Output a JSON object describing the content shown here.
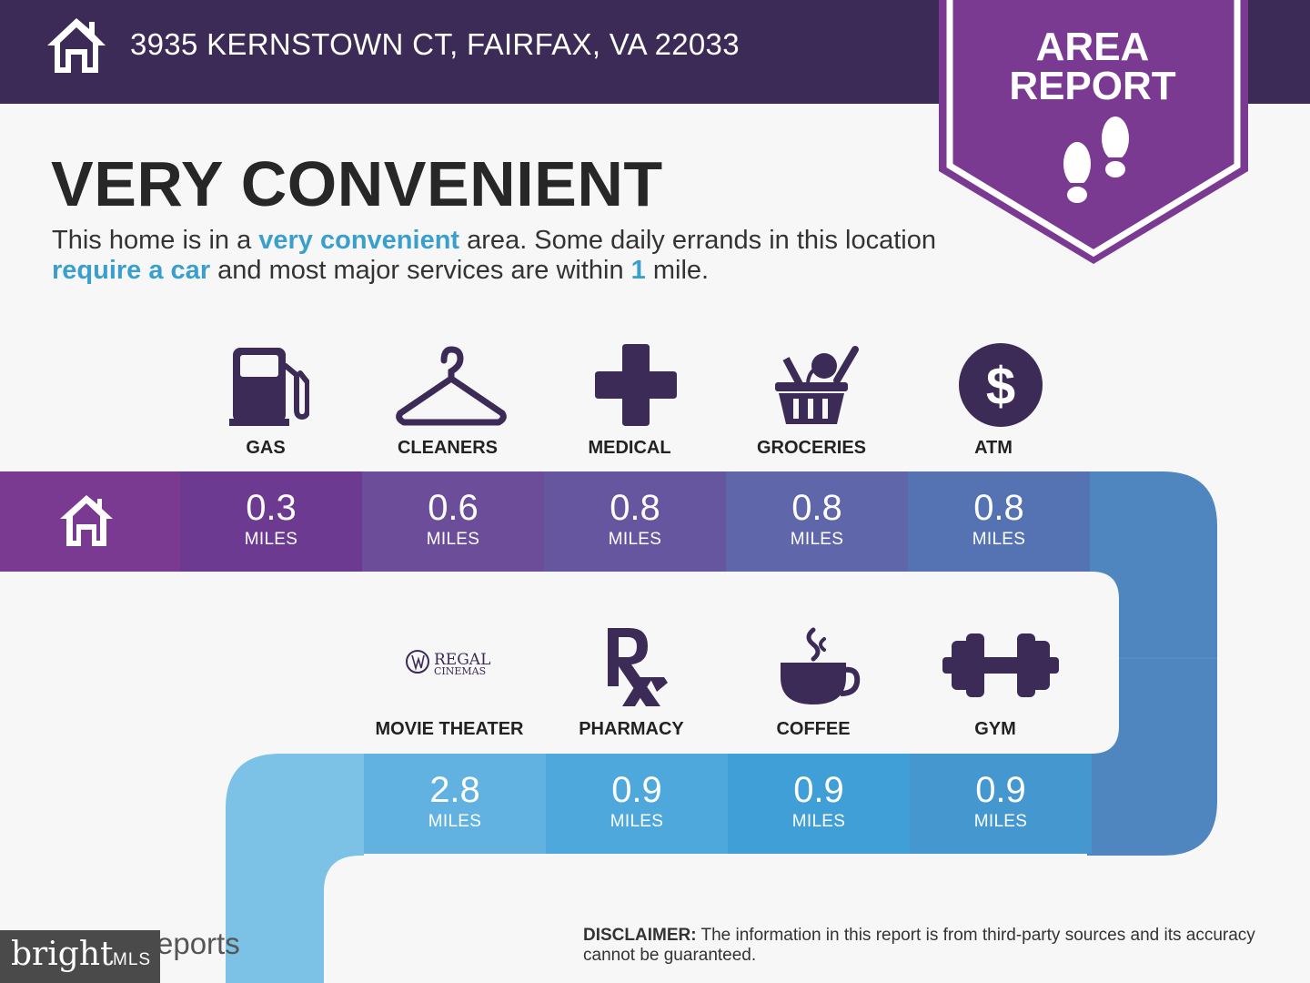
{
  "header": {
    "address": "3935 KERNSTOWN CT, FAIRFAX, VA 22033",
    "icon": "house-icon",
    "background_color": "#3c2b57"
  },
  "badge": {
    "line1": "AREA",
    "line2": "REPORT",
    "icon": "footprints-icon",
    "color": "#7b3a92"
  },
  "headline": "VERY CONVENIENT",
  "intro": {
    "part1": "This home is in a ",
    "highlight1": "very convenient",
    "part2": " area. Some daily errands in this location ",
    "highlight2": "require a car",
    "part3": " and most major services are within ",
    "highlight3": "1",
    "part4": " mile."
  },
  "row1": {
    "start_icon": "house-icon",
    "items": [
      {
        "label": "GAS",
        "icon": "gas-pump-icon",
        "distance": "0.3",
        "unit": "MILES",
        "color": "#6c3a90"
      },
      {
        "label": "CLEANERS",
        "icon": "clothes-hanger-icon",
        "distance": "0.6",
        "unit": "MILES",
        "color": "#6b4d9a"
      },
      {
        "label": "MEDICAL",
        "icon": "medical-cross-icon",
        "distance": "0.8",
        "unit": "MILES",
        "color": "#6656a0"
      },
      {
        "label": "GROCERIES",
        "icon": "grocery-basket-icon",
        "distance": "0.8",
        "unit": "MILES",
        "color": "#5f66a9"
      },
      {
        "label": "ATM",
        "icon": "dollar-coin-icon",
        "distance": "0.8",
        "unit": "MILES",
        "color": "#5573b2"
      }
    ]
  },
  "row2": {
    "items": [
      {
        "label": "MOVIE THEATER",
        "icon": "regal-cinemas-logo",
        "logo_text1": "REGAL",
        "logo_text2": "CINEMAS",
        "distance": "2.8",
        "unit": "MILES",
        "color": "#61b2e0"
      },
      {
        "label": "PHARMACY",
        "icon": "rx-icon",
        "distance": "0.9",
        "unit": "MILES",
        "color": "#4ea8dc"
      },
      {
        "label": "COFFEE",
        "icon": "coffee-cup-icon",
        "distance": "0.9",
        "unit": "MILES",
        "color": "#3f9fd6"
      },
      {
        "label": "GYM",
        "icon": "dumbbell-icon",
        "distance": "0.9",
        "unit": "MILES",
        "color": "#4497cf"
      }
    ]
  },
  "footer": {
    "disclaimer_label": "DISCLAIMER:",
    "disclaimer_text": " The information in this report is from third-party sources and its accuracy cannot be guaranteed.",
    "brand_partial": "eports",
    "mls_word1": "bright",
    "mls_word2": "MLS"
  },
  "colors": {
    "icon_purple": "#3c2b57",
    "accent_blue": "#3b9fce"
  }
}
